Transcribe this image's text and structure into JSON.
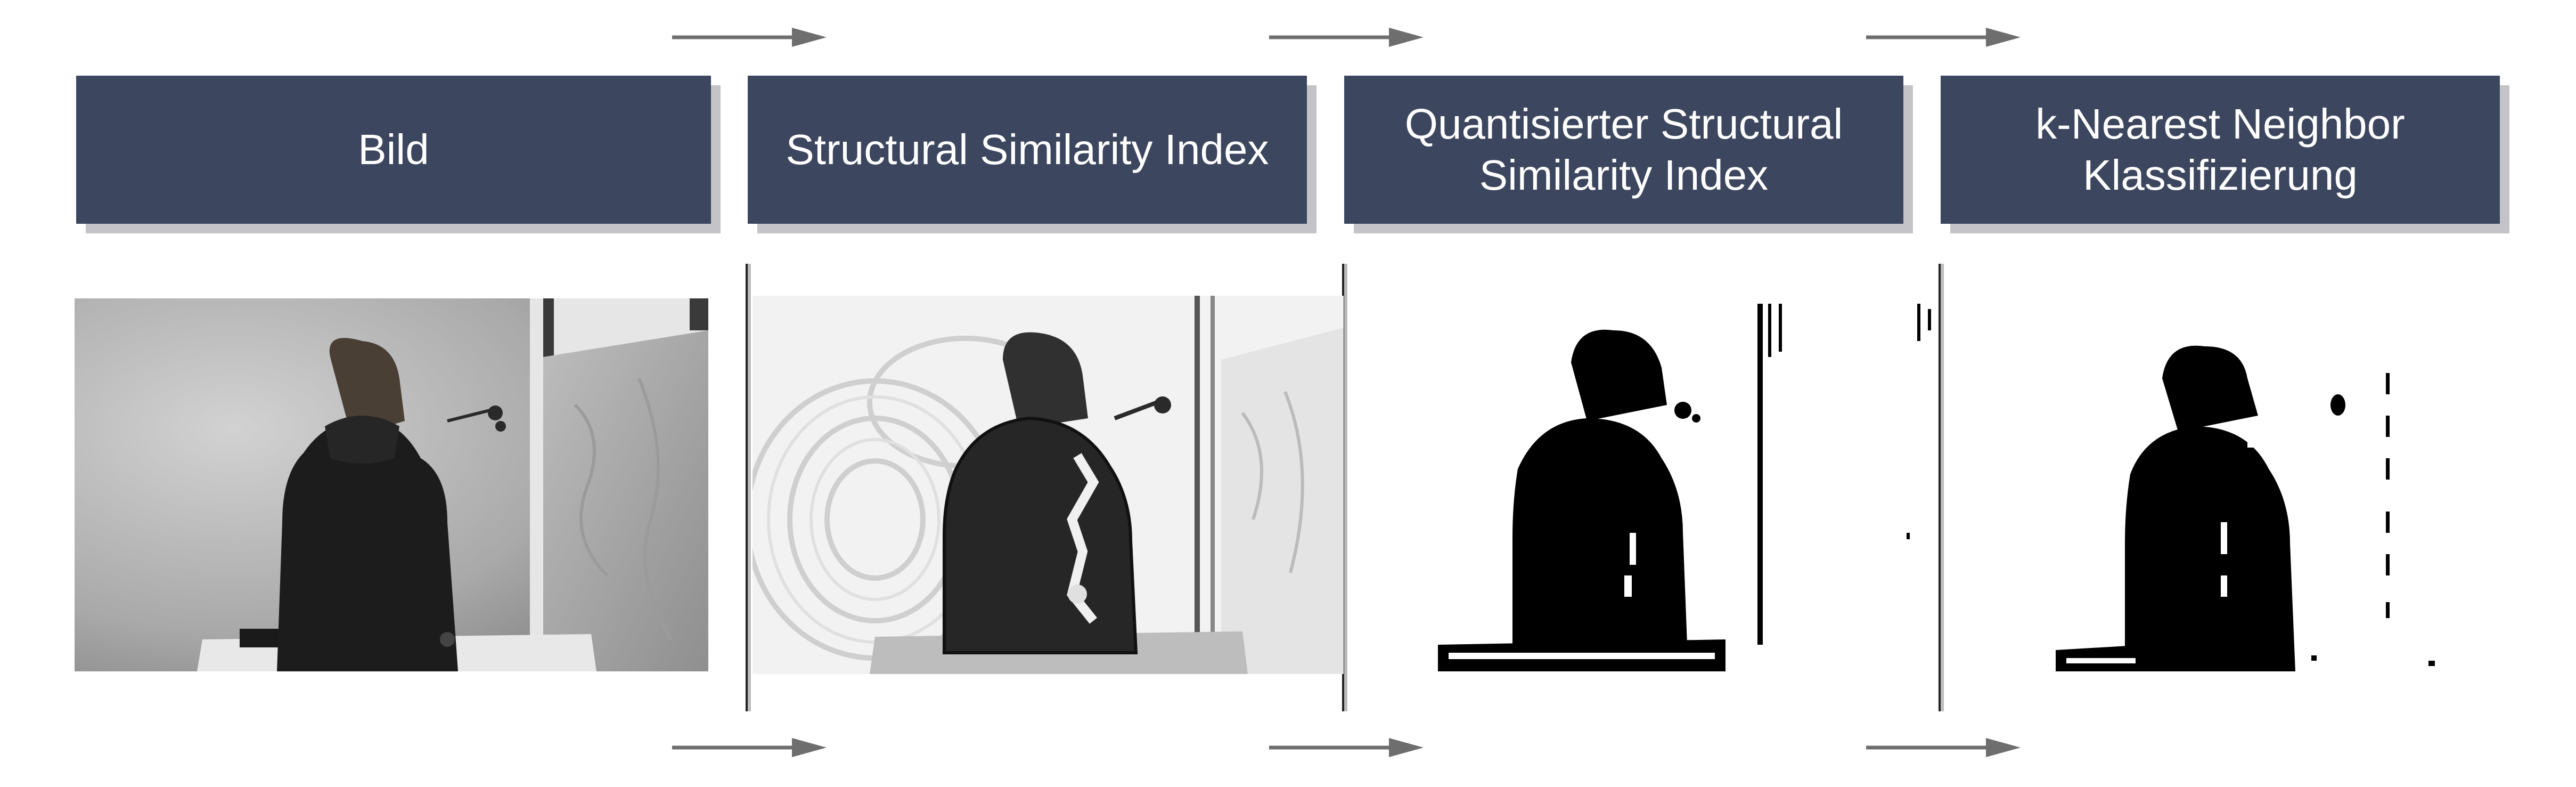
{
  "steps": [
    {
      "lines": [
        "Bild"
      ]
    },
    {
      "lines": [
        "Structural Similarity Index"
      ]
    },
    {
      "lines": [
        "Quantisierter Structural",
        "Similarity Index"
      ]
    },
    {
      "lines": [
        "k-Nearest Neighbor",
        "Klassifizierung"
      ]
    }
  ],
  "colors": {
    "box_fill": "#3c465e",
    "box_shadow": "#c4c4c8",
    "box_text": "#ffffff",
    "arrow": "#6e6e6e"
  },
  "icons": [
    "arrow-right-icon"
  ]
}
